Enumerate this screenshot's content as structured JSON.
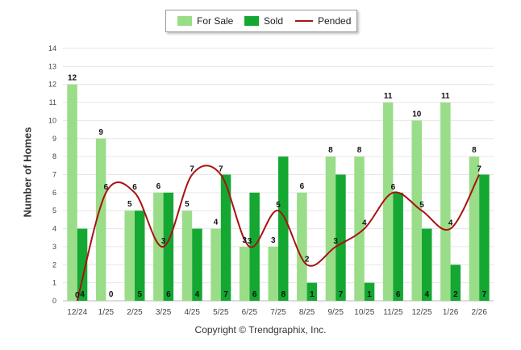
{
  "chart_data": {
    "type": "bar",
    "title": "",
    "xlabel": "",
    "ylabel": "Number of Homes",
    "ylim": [
      0,
      14
    ],
    "yticks": [
      0,
      1,
      2,
      3,
      4,
      5,
      6,
      7,
      8,
      9,
      10,
      11,
      12,
      13,
      14
    ],
    "grid": true,
    "legend_position": "top-center",
    "categories": [
      "12/24",
      "1/25",
      "2/25",
      "3/25",
      "4/25",
      "5/25",
      "6/25",
      "7/25",
      "8/25",
      "9/25",
      "10/25",
      "11/25",
      "12/25",
      "1/26",
      "2/26"
    ],
    "series": [
      {
        "name": "For Sale",
        "kind": "bar",
        "color": "#99dd88",
        "values": [
          12,
          9,
          5,
          6,
          5,
          4,
          3,
          3,
          6,
          8,
          8,
          11,
          10,
          11,
          8
        ]
      },
      {
        "name": "Sold",
        "kind": "bar",
        "color": "#14a832",
        "values": [
          4,
          0,
          5,
          6,
          4,
          7,
          6,
          8,
          1,
          7,
          1,
          6,
          4,
          2,
          7
        ]
      },
      {
        "name": "Pended",
        "kind": "line",
        "color": "#aa1111",
        "values": [
          0,
          6,
          6,
          3,
          7,
          7,
          3,
          5,
          2,
          3,
          4,
          6,
          5,
          4,
          7
        ]
      }
    ]
  },
  "footer": {
    "copyright": "Copyright © Trendgraphix, Inc."
  }
}
